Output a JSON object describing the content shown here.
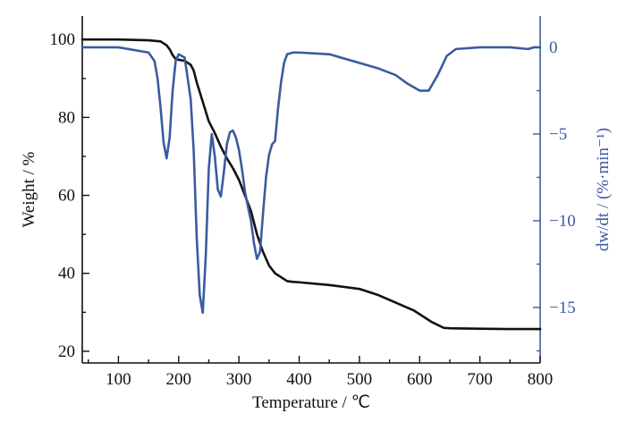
{
  "chart_data": {
    "type": "line",
    "xlabel": "Temperature / ℃",
    "ylabel": "Weight / %",
    "y2label": "dw/dt / (%·min⁻¹)",
    "xlim": [
      40,
      800
    ],
    "ylim": [
      17,
      106
    ],
    "y2lim": [
      -18.2,
      1.8
    ],
    "x_ticks": [
      100,
      200,
      300,
      400,
      500,
      600,
      700,
      800
    ],
    "y_ticks": [
      20,
      40,
      60,
      80,
      100
    ],
    "y2_ticks": [
      0,
      -5,
      -10,
      -15
    ],
    "grid": false,
    "colors": {
      "weight": "#111111",
      "dwdt": "#3a5ba0"
    },
    "series": [
      {
        "axis": "left",
        "x": [
          40,
          100,
          150,
          170,
          180,
          185,
          190,
          195,
          200,
          210,
          220,
          225,
          230,
          240,
          250,
          260,
          270,
          280,
          290,
          300,
          310,
          320,
          330,
          340,
          350,
          360,
          370,
          380,
          390,
          400,
          450,
          500,
          530,
          560,
          590,
          620,
          640,
          650,
          700,
          750,
          800
        ],
        "y": [
          100,
          100,
          99.8,
          99.5,
          98.5,
          97.5,
          96,
          95,
          94.8,
          94.5,
          93.5,
          92,
          89,
          84,
          79,
          76,
          72.5,
          69.5,
          67,
          64,
          60,
          56,
          50,
          45.5,
          42,
          40,
          39,
          38,
          37.8,
          37.7,
          37,
          36,
          34.5,
          32.5,
          30.5,
          27.5,
          26,
          25.9,
          25.8,
          25.7,
          25.7
        ]
      },
      {
        "axis": "right",
        "x": [
          40,
          100,
          150,
          160,
          165,
          170,
          175,
          180,
          185,
          190,
          195,
          200,
          210,
          220,
          225,
          230,
          235,
          240,
          245,
          250,
          255,
          260,
          265,
          270,
          275,
          280,
          285,
          290,
          295,
          300,
          305,
          310,
          315,
          320,
          325,
          330,
          335,
          340,
          345,
          350,
          355,
          360,
          365,
          370,
          375,
          380,
          390,
          400,
          450,
          500,
          530,
          560,
          580,
          600,
          615,
          630,
          645,
          660,
          700,
          750,
          780,
          790,
          800
        ],
        "y": [
          0,
          0,
          -0.3,
          -0.8,
          -1.8,
          -3.5,
          -5.5,
          -6.4,
          -5.2,
          -2.5,
          -0.8,
          -0.4,
          -0.6,
          -3,
          -6,
          -11,
          -14.3,
          -15.3,
          -12,
          -7,
          -5,
          -6.3,
          -8.2,
          -8.6,
          -7.2,
          -5.6,
          -4.9,
          -4.8,
          -5.2,
          -5.9,
          -7,
          -8.3,
          -9.2,
          -10,
          -11.3,
          -12.2,
          -11.8,
          -9.6,
          -7.5,
          -6.2,
          -5.6,
          -5.4,
          -3.5,
          -2,
          -0.9,
          -0.4,
          -0.3,
          -0.3,
          -0.4,
          -0.9,
          -1.2,
          -1.6,
          -2.1,
          -2.5,
          -2.5,
          -1.6,
          -0.5,
          -0.1,
          0,
          0,
          -0.1,
          0,
          0
        ]
      }
    ]
  }
}
